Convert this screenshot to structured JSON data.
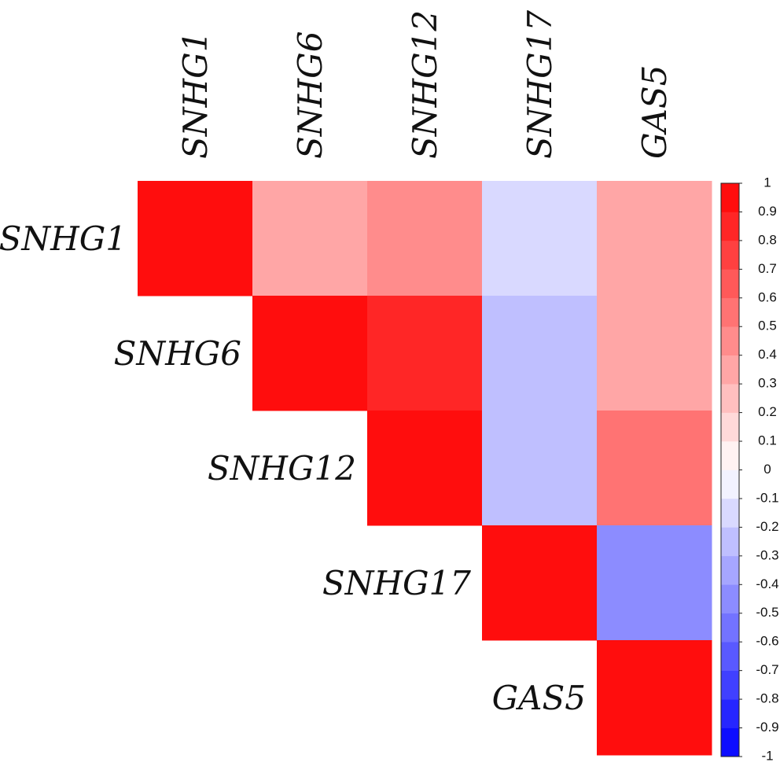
{
  "chart_data": {
    "type": "heatmap",
    "categories": [
      "SNHG1",
      "SNHG6",
      "SNHG12",
      "SNHG17",
      "GAS5"
    ],
    "z": [
      [
        1,
        0.35,
        0.5,
        -0.15,
        0.35
      ],
      [
        null,
        1,
        0.85,
        -0.25,
        0.35
      ],
      [
        null,
        null,
        1,
        -0.25,
        0.6
      ],
      [
        null,
        null,
        null,
        1,
        -0.4
      ],
      [
        null,
        null,
        null,
        null,
        1
      ]
    ],
    "colors": [
      "#0000ff",
      "#ffffff",
      "#ff0000"
    ],
    "zlim": [
      -1,
      1
    ],
    "zticks": [
      1,
      0.9,
      0.8,
      0.7,
      0.6,
      0.5,
      0.4,
      0.3,
      0.2,
      0.1,
      0,
      -0.1,
      -0.2,
      -0.3,
      -0.4,
      -0.5,
      -0.6,
      -0.7,
      -0.8,
      -0.9,
      -1
    ]
  }
}
